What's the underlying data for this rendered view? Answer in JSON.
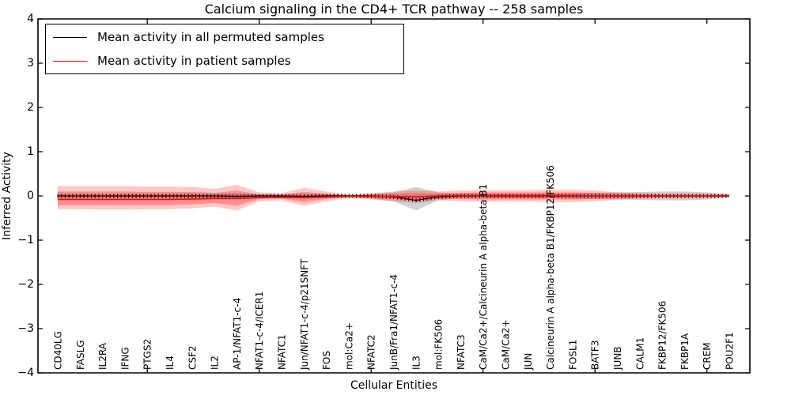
{
  "figure": {
    "title": "Calcium signaling in the CD4+ TCR pathway -- 258 samples",
    "xlabel": "Cellular Entities",
    "ylabel": "Inferred Activity"
  },
  "chart_data": {
    "type": "line",
    "title": "Calcium signaling in the CD4+ TCR pathway -- 258 samples",
    "xlabel": "Cellular Entities",
    "ylabel": "Inferred Activity",
    "ylim": [
      -4,
      4
    ],
    "y_ticks": [
      "4",
      "3",
      "2",
      "1",
      "0",
      "−1",
      "−2",
      "−3",
      "−4"
    ],
    "y_tick_values": [
      4,
      3,
      2,
      1,
      0,
      -1,
      -2,
      -3,
      -4
    ],
    "x_tick_positions": [
      5,
      10,
      15,
      20,
      25,
      30
    ],
    "grid": false,
    "legend_position": "upper left",
    "categories": [
      "CD40LG",
      "FASLG",
      "IL2RA",
      "IFNG",
      "PTGS2",
      "IL4",
      "CSF2",
      "IL2",
      "AP-1/NFAT1-c-4",
      "NFAT1-c-4/ICER1",
      "NFATC1",
      "Jun/NFAT1-c-4/p21SNFT",
      "FOS",
      "mol:Ca2+",
      "NFATC2",
      "JunB/Fra1/NFAT1-c-4",
      "IL3",
      "mol:FK506",
      "NFATC3",
      "CaM/Ca2+/Calcineurin A alpha-beta B1",
      "CaM/Ca2+",
      "JUN",
      "Calcineurin A alpha-beta B1/FKBP12/FK506",
      "FOSL1",
      "BATF3",
      "JUNB",
      "CALM1",
      "FKBP12/FK506",
      "FKBP1A",
      "CREM",
      "POU2F1"
    ],
    "series": [
      {
        "name": "Mean activity in all permuted samples",
        "color": "#000000",
        "marker": "+",
        "values": [
          0,
          0,
          0,
          0,
          0,
          0,
          0,
          0,
          -0.01,
          0,
          0,
          -0.01,
          0,
          0,
          0,
          -0.02,
          -0.1,
          -0.02,
          0,
          0,
          0,
          0,
          0,
          0,
          0,
          0,
          0,
          0,
          0,
          0,
          0
        ]
      },
      {
        "name": "Mean activity in patient samples",
        "color": "#ff0000",
        "marker": "none",
        "values": [
          -0.08,
          -0.08,
          -0.08,
          -0.08,
          -0.08,
          -0.08,
          -0.07,
          -0.06,
          -0.06,
          -0.04,
          -0.03,
          -0.04,
          -0.02,
          -0.01,
          -0.01,
          -0.01,
          -0.02,
          0,
          0.01,
          0.01,
          0.01,
          0.01,
          0.01,
          0.01,
          0,
          0,
          0,
          0,
          0,
          0,
          0.01
        ]
      }
    ],
    "bands": [
      {
        "name": "permuted-samples-spread",
        "color": "#999999",
        "opacity": 0.45,
        "upper": [
          0.05,
          0.05,
          0.05,
          0.05,
          0.05,
          0.05,
          0.05,
          0.05,
          0.06,
          0.04,
          0.04,
          0.05,
          0.04,
          0.02,
          0.05,
          0.08,
          0.2,
          0.08,
          0.05,
          0.05,
          0.05,
          0.05,
          0.05,
          0.06,
          0.07,
          0.08,
          0.09,
          0.1,
          0.1,
          0.08,
          0.04
        ],
        "lower": [
          -0.05,
          -0.05,
          -0.05,
          -0.05,
          -0.05,
          -0.05,
          -0.05,
          -0.05,
          -0.06,
          -0.04,
          -0.04,
          -0.05,
          -0.04,
          -0.02,
          -0.06,
          -0.12,
          -0.33,
          -0.1,
          -0.05,
          -0.05,
          -0.05,
          -0.05,
          -0.05,
          -0.06,
          -0.07,
          -0.08,
          -0.09,
          -0.1,
          -0.1,
          -0.08,
          -0.04
        ]
      },
      {
        "name": "patient-samples-outer-spread",
        "color": "#ff0000",
        "opacity": 0.22,
        "upper": [
          0.22,
          0.22,
          0.22,
          0.22,
          0.21,
          0.21,
          0.2,
          0.16,
          0.25,
          0.08,
          0.06,
          0.18,
          0.1,
          0.03,
          0.06,
          0.1,
          0.12,
          0.1,
          0.12,
          0.13,
          0.13,
          0.13,
          0.14,
          0.14,
          0.12,
          0.08,
          0.06,
          0.05,
          0.05,
          0.04,
          0.03
        ],
        "lower": [
          -0.3,
          -0.3,
          -0.31,
          -0.31,
          -0.3,
          -0.3,
          -0.28,
          -0.24,
          -0.33,
          -0.12,
          -0.1,
          -0.22,
          -0.12,
          -0.04,
          -0.08,
          -0.12,
          -0.16,
          -0.1,
          -0.12,
          -0.13,
          -0.13,
          -0.13,
          -0.14,
          -0.14,
          -0.12,
          -0.08,
          -0.06,
          -0.05,
          -0.05,
          -0.04,
          -0.03
        ],
        "lw": 1
      },
      {
        "name": "patient-samples-inner-spread",
        "color": "#ff0000",
        "opacity": 0.28,
        "upper": [
          0.1,
          0.1,
          0.1,
          0.1,
          0.09,
          0.09,
          0.09,
          0.07,
          0.12,
          0.03,
          0.02,
          0.09,
          0.05,
          0.01,
          0.03,
          0.05,
          0.06,
          0.05,
          0.07,
          0.08,
          0.08,
          0.08,
          0.08,
          0.08,
          0.07,
          0.05,
          0.03,
          0.03,
          0.03,
          0.02,
          0.02
        ],
        "lower": [
          -0.21,
          -0.21,
          -0.21,
          -0.21,
          -0.21,
          -0.21,
          -0.19,
          -0.16,
          -0.22,
          -0.07,
          -0.06,
          -0.14,
          -0.07,
          -0.02,
          -0.05,
          -0.07,
          -0.1,
          -0.06,
          -0.07,
          -0.08,
          -0.08,
          -0.08,
          -0.08,
          -0.08,
          -0.07,
          -0.05,
          -0.04,
          -0.03,
          -0.03,
          -0.02,
          -0.02
        ]
      }
    ]
  },
  "colors": {
    "spine": "#000000",
    "background": "#ffffff"
  }
}
